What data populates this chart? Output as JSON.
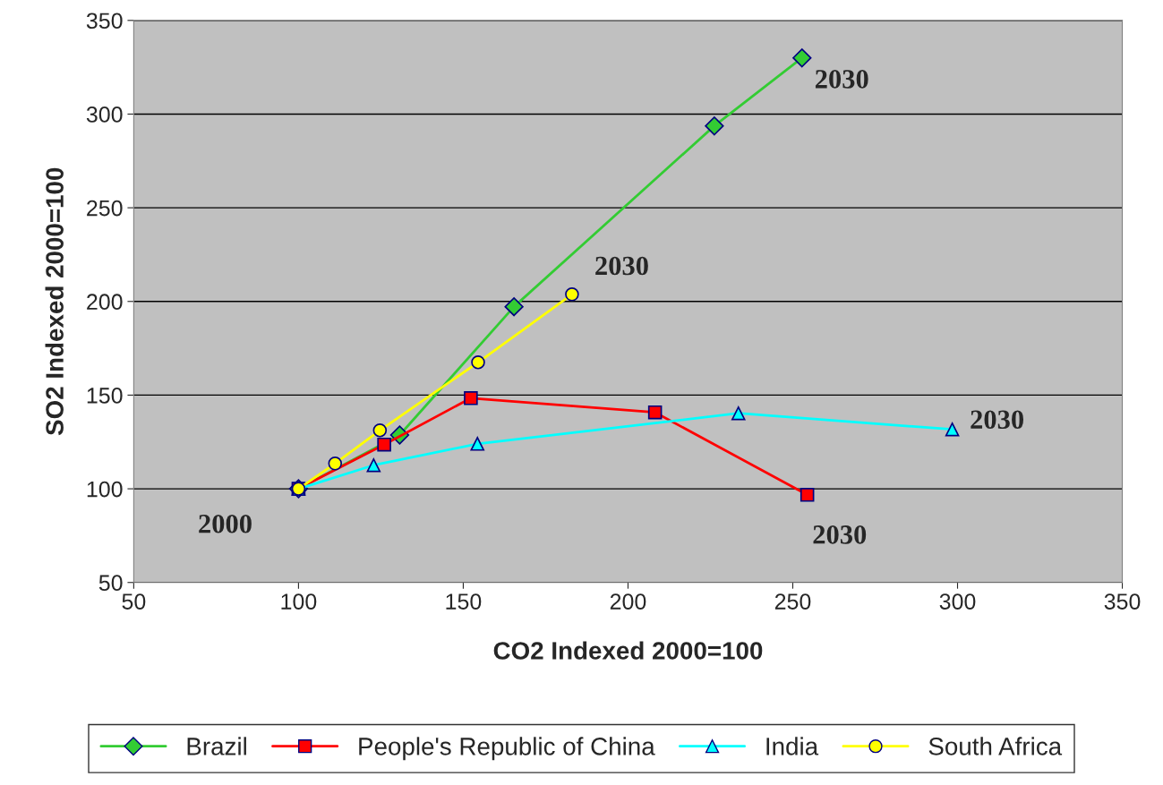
{
  "chart_data": {
    "type": "line",
    "xlabel": "CO2 Indexed 2000=100",
    "ylabel": "SO2 Indexed 2000=100",
    "xlim": [
      50,
      350
    ],
    "xticks": [
      50,
      100,
      150,
      200,
      250,
      300,
      350
    ],
    "ylim": [
      50,
      350
    ],
    "yticks": [
      50,
      100,
      150,
      200,
      250,
      300,
      350
    ],
    "grid": "y",
    "legend": "bottom",
    "series": [
      {
        "name": "Brazil",
        "color": "#33cc33",
        "marker": "diamond",
        "x": [
          100,
          130.7,
          165.4,
          226.2,
          252.8
        ],
        "values": [
          100,
          128.7,
          197.2,
          293.7,
          330
        ]
      },
      {
        "name": "People's Republic of China",
        "color": "#ff0000",
        "marker": "square",
        "x": [
          100,
          126,
          152.3,
          208.2,
          254.4
        ],
        "values": [
          100,
          123.6,
          148.4,
          140.8,
          96.8
        ]
      },
      {
        "name": "India",
        "color": "#00ffff",
        "marker": "triangle",
        "x": [
          100,
          122.8,
          154.3,
          233.5,
          298.4
        ],
        "values": [
          100,
          112.6,
          124,
          140.3,
          131.7
        ]
      },
      {
        "name": "South Africa",
        "color": "#ffff00",
        "marker": "circle",
        "x": [
          100,
          111.1,
          124.7,
          154.5,
          183
        ],
        "values": [
          100,
          113.5,
          131.2,
          167.5,
          203.8
        ]
      }
    ],
    "annotations": [
      "2000",
      {
        "text": "2030",
        "x": 252.8,
        "y": 330
      },
      {
        "text": "2030",
        "x": 183,
        "y": 203.8
      },
      {
        "text": "2030",
        "x": 298.4,
        "y": 131.7
      },
      {
        "text": "2030",
        "x": 254.4,
        "y": 96.8
      }
    ]
  }
}
